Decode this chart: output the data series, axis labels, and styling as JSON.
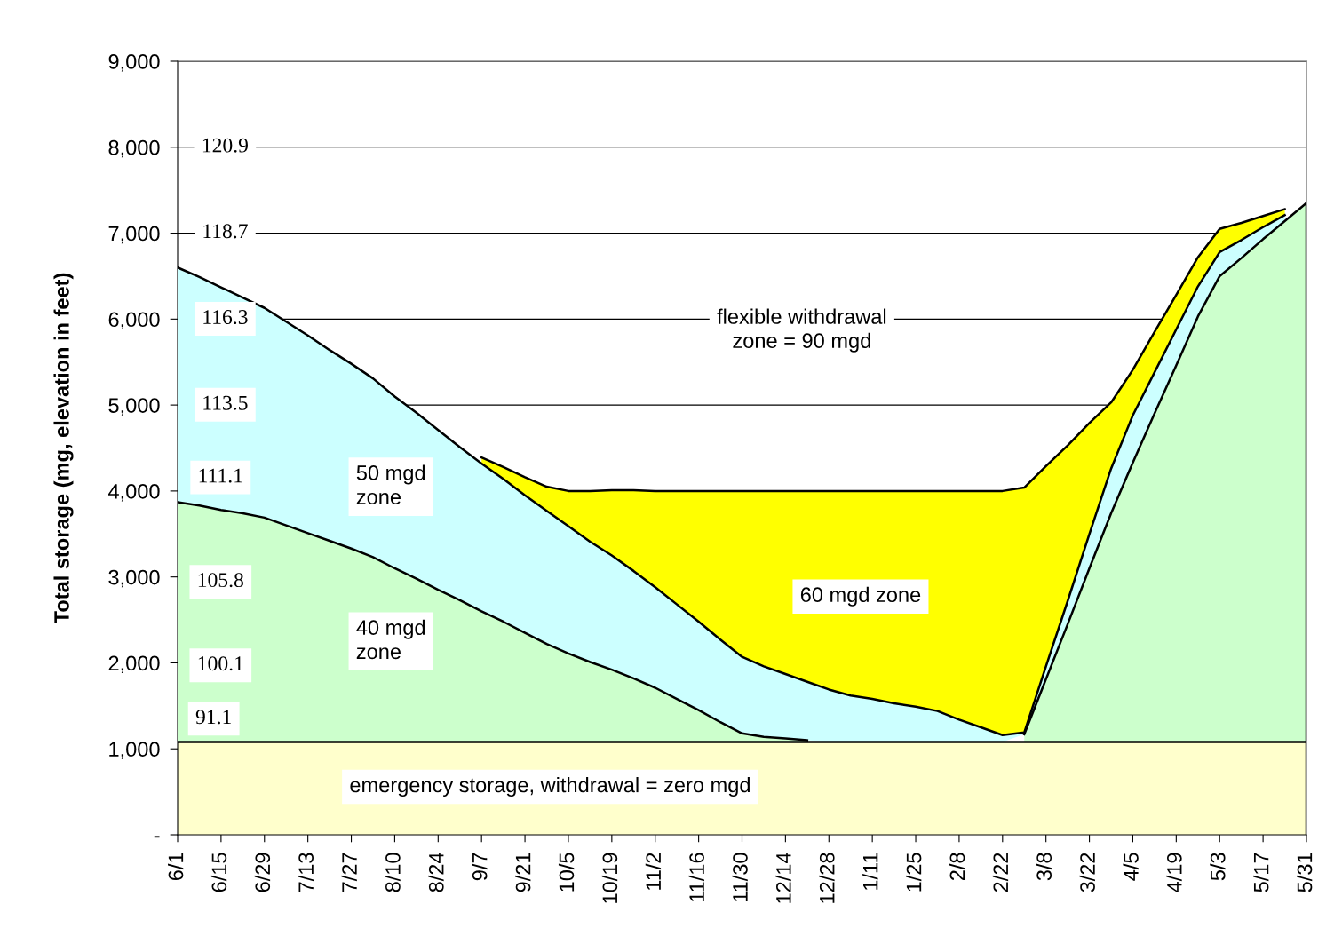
{
  "chart_data": {
    "type": "area",
    "stacked": true,
    "ylabel": "Total storage (mg, elevation in feet)",
    "categories": [
      "6/1",
      null,
      "6/15",
      null,
      "6/29",
      null,
      "7/13",
      null,
      "7/27",
      null,
      "8/10",
      null,
      "8/24",
      null,
      "9/7",
      null,
      "9/21",
      null,
      "10/5",
      null,
      "10/19",
      null,
      "11/2",
      null,
      "11/16",
      null,
      "11/30",
      null,
      "12/14",
      null,
      "12/28",
      null,
      "1/11",
      null,
      "1/25",
      null,
      "2/8",
      null,
      "2/22",
      null,
      "3/8",
      null,
      "3/22",
      null,
      "4/5",
      null,
      "4/19",
      null,
      "5/3",
      null,
      "5/17",
      null,
      "5/31"
    ],
    "series": [
      {
        "color": "#ffffcc",
        "values": [
          1080,
          1080,
          1080,
          1080,
          1080,
          1080,
          1080,
          1080,
          1080,
          1080,
          1080,
          1080,
          1080,
          1080,
          1080,
          1080,
          1080,
          1080,
          1080,
          1080,
          1080,
          1080,
          1080,
          1080,
          1080,
          1080,
          1080,
          1080,
          1080,
          1080,
          1080,
          1080,
          1080,
          1080,
          1080,
          1080,
          1080,
          1080,
          1080,
          1080,
          1080,
          1080,
          1080,
          1080,
          1080,
          1080,
          1080,
          1080,
          1080,
          1080,
          1080,
          1080,
          1080
        ]
      },
      {
        "color": "#ccffcc",
        "values": [
          2790,
          2750,
          2700,
          2660,
          2610,
          2520,
          2430,
          2340,
          2250,
          2150,
          2020,
          1900,
          1770,
          1650,
          1520,
          1400,
          1270,
          1140,
          1030,
          930,
          840,
          740,
          630,
          500,
          370,
          230,
          100,
          60,
          40,
          20,
          null,
          null,
          null,
          null,
          null,
          null,
          null,
          null,
          null,
          90,
          730,
          1370,
          2020,
          2660,
          3250,
          3820,
          4380,
          4950,
          5420,
          5630,
          5850,
          6060,
          6270
        ]
      },
      {
        "color": "#ccffff",
        "values": [
          2730,
          2660,
          2590,
          2510,
          2440,
          2370,
          2300,
          2220,
          2150,
          2080,
          2000,
          1930,
          1860,
          1780,
          1720,
          1660,
          1600,
          1550,
          1480,
          1400,
          1330,
          1250,
          1170,
          1100,
          1030,
          960,
          890,
          820,
          750,
          680,
          610,
          540,
          500,
          450,
          410,
          360,
          260,
          170,
          80,
          20,
          150,
          270,
          400,
          520,
          550,
          480,
          420,
          350,
          280,
          210,
          140,
          70,
          null
        ]
      },
      {
        "color": "#ffff00",
        "values": [
          null,
          null,
          null,
          null,
          null,
          null,
          null,
          null,
          null,
          null,
          null,
          null,
          null,
          null,
          70,
          140,
          210,
          280,
          410,
          590,
          760,
          940,
          1120,
          1320,
          1520,
          1730,
          1930,
          2040,
          2130,
          2220,
          2310,
          2380,
          2420,
          2470,
          2510,
          2560,
          2660,
          2750,
          2840,
          2850,
          2330,
          1810,
          1290,
          770,
          530,
          470,
          400,
          340,
          270,
          200,
          130,
          70,
          null
        ]
      }
    ],
    "annotations": [
      "emergency storage, withdrawal = zero mgd",
      "40 mgd\nzone",
      "50 mgd\nzone",
      "60 mgd zone",
      "flexible withdrawal\nzone = 90 mgd",
      "120.9",
      "118.7",
      "116.3",
      "113.5",
      "111.1",
      "105.8",
      "100.1",
      "91.1"
    ],
    "ylim": [
      0,
      9000
    ],
    "yticks": [
      {
        "value": 0,
        "label": "-"
      },
      {
        "value": 1000,
        "label": "1,000"
      },
      {
        "value": 2000,
        "label": "2,000"
      },
      {
        "value": 3000,
        "label": "3,000"
      },
      {
        "value": 4000,
        "label": "4,000"
      },
      {
        "value": 5000,
        "label": "5,000"
      },
      {
        "value": 6000,
        "label": "6,000"
      },
      {
        "value": 7000,
        "label": "7,000"
      },
      {
        "value": 8000,
        "label": "8,000"
      },
      {
        "value": 9000,
        "label": "9,000"
      }
    ],
    "grid": "y"
  }
}
